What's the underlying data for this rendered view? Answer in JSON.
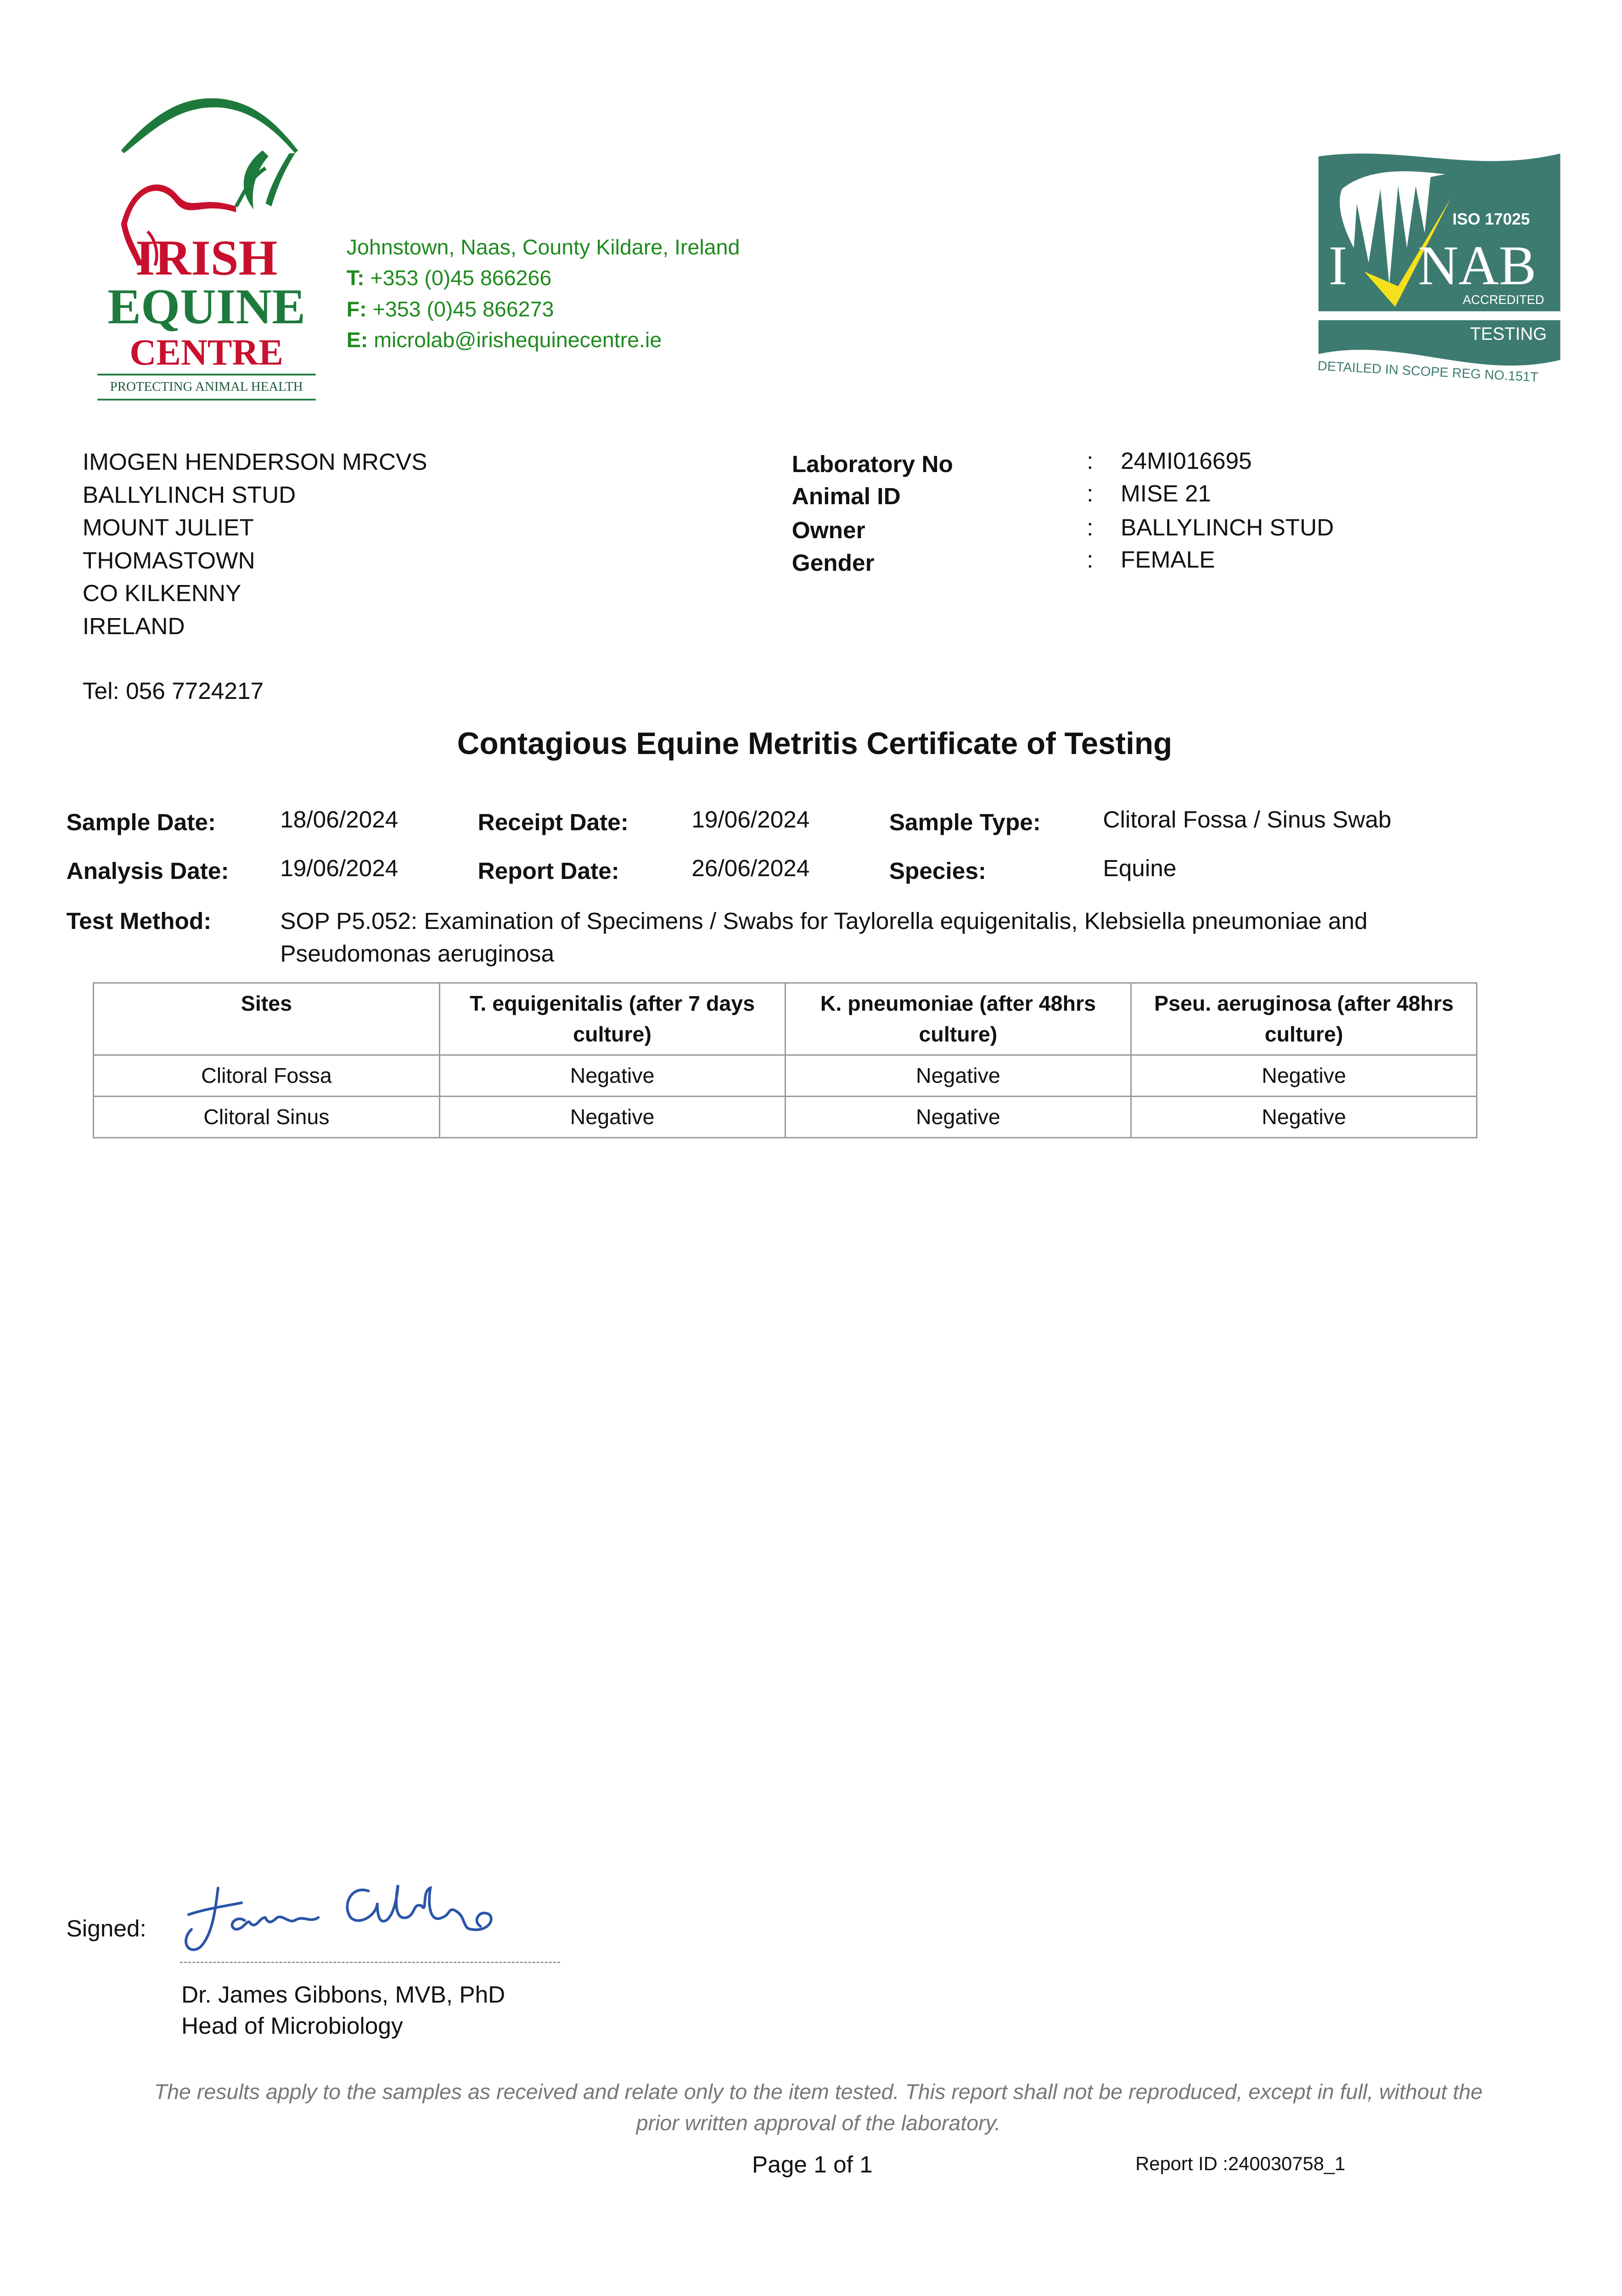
{
  "lab": {
    "logo_text": [
      "IRISH",
      "EQUINE",
      "CENTRE"
    ],
    "logo_tagline": "PROTECTING ANIMAL HEALTH",
    "address": "Johnstown, Naas, County Kildare, Ireland",
    "phone_label": "T:",
    "phone": "+353 (0)45 866266",
    "fax_label": "F:",
    "fax": "+353 (0)45 866273",
    "email_label": "E:",
    "email": "microlab@irishequinecentre.ie",
    "colors": {
      "green": "#1e7a3c",
      "red": "#c8102e",
      "inab_teal": "#3d7b70",
      "inab_yellow": "#f5e11b"
    }
  },
  "accreditation": {
    "iso": "ISO 17025",
    "name": "INAB",
    "accredited": "ACCREDITED",
    "type": "TESTING",
    "scope": "DETAILED IN SCOPE REG NO.151T"
  },
  "recipient": {
    "lines": [
      "IMOGEN HENDERSON MRCVS",
      "BALLYLINCH STUD",
      "MOUNT JULIET",
      "THOMASTOWN",
      "CO KILKENNY",
      "IRELAND"
    ],
    "tel": "Tel: 056 7724217"
  },
  "animal": [
    {
      "label": "Laboratory No",
      "value": "24MI016695"
    },
    {
      "label": "Animal ID",
      "value": "MISE 21"
    },
    {
      "label": "Owner",
      "value": "BALLYLINCH STUD"
    },
    {
      "label": "Gender",
      "value": "FEMALE"
    }
  ],
  "title": "Contagious Equine Metritis Certificate of Testing",
  "details": {
    "sample_date_label": "Sample Date:",
    "sample_date": "18/06/2024",
    "receipt_date_label": "Receipt Date:",
    "receipt_date": "19/06/2024",
    "sample_type_label": "Sample Type:",
    "sample_type": "Clitoral Fossa / Sinus Swab",
    "analysis_date_label": "Analysis Date:",
    "analysis_date": "19/06/2024",
    "report_date_label": "Report Date:",
    "report_date": "26/06/2024",
    "species_label": "Species:",
    "species": "Equine",
    "test_method_label": "Test Method:",
    "test_method_1": "SOP P5.052: Examination of Specimens / Swabs for Taylorella equigenitalis, Klebsiella pneumoniae and",
    "test_method_2": "Pseudomonas aeruginosa"
  },
  "results": {
    "headers": [
      "Sites",
      "T. equigenitalis (after 7 days culture)",
      "K. pneumoniae (after 48hrs culture)",
      "Pseu. aeruginosa (after 48hrs culture)"
    ],
    "rows": [
      [
        "Clitoral Fossa",
        "Negative",
        "Negative",
        "Negative"
      ],
      [
        "Clitoral Sinus",
        "Negative",
        "Negative",
        "Negative"
      ]
    ]
  },
  "signature": {
    "label": "Signed:",
    "signature_text": "James Gibbons",
    "name": "Dr. James Gibbons, MVB, PhD",
    "role": "Head of Microbiology"
  },
  "footer": {
    "disclaimer": "The results apply to the samples as received and relate only to the item tested. This report shall not be reproduced, except in full, without the prior written approval of the laboratory.",
    "page": "Page 1 of 1",
    "report_id": "Report ID :240030758_1"
  }
}
